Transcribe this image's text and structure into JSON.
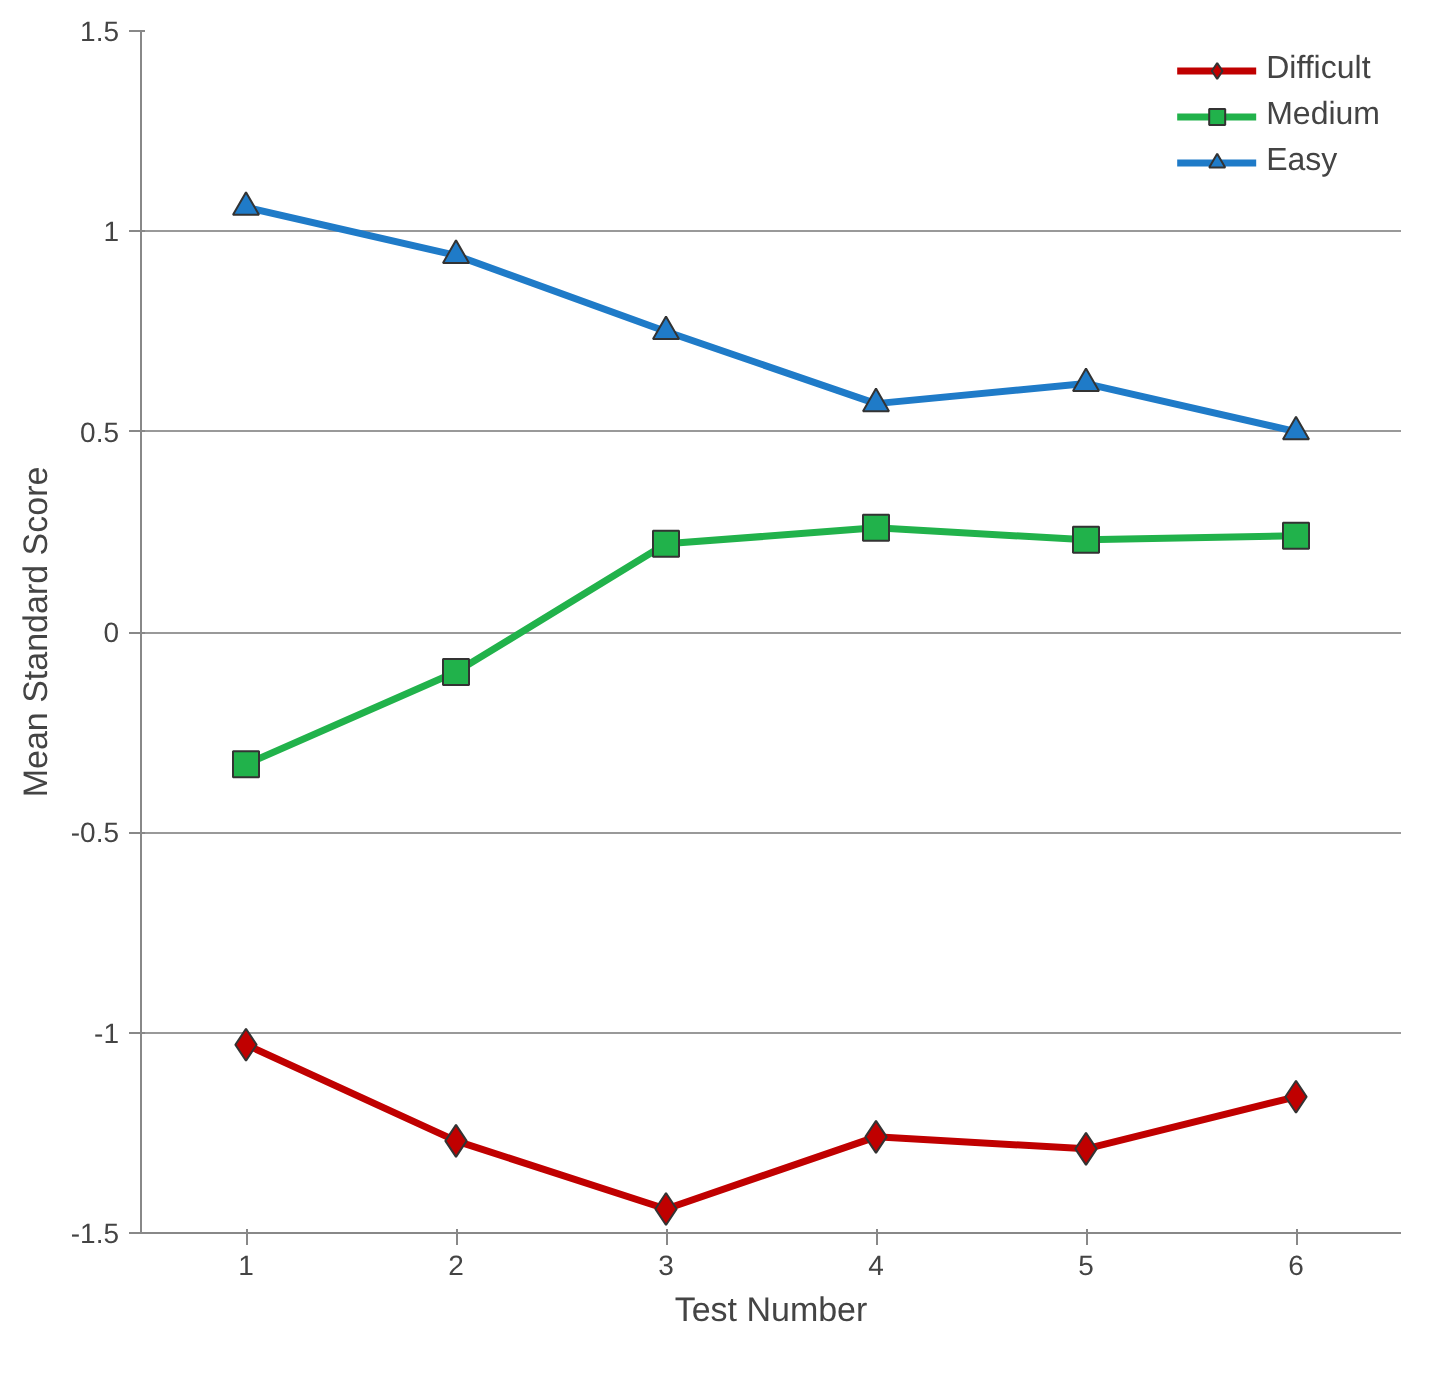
{
  "chart_data": {
    "type": "line",
    "xlabel": "Test Number",
    "ylabel": "Mean Standard Score",
    "categories": [
      "1",
      "2",
      "3",
      "4",
      "5",
      "6"
    ],
    "ylim": [
      -1.5,
      1.5
    ],
    "yticks": [
      {
        "value": -1.5,
        "label": "-1.5"
      },
      {
        "value": -1,
        "label": "-1"
      },
      {
        "value": -0.5,
        "label": "-0.5"
      },
      {
        "value": 0,
        "label": "0"
      },
      {
        "value": 0.5,
        "label": "0.5"
      },
      {
        "value": 1,
        "label": "1"
      },
      {
        "value": 1.5,
        "label": "1.5"
      }
    ],
    "grid": "y",
    "legend": "top right",
    "line_style": "solid",
    "series": [
      {
        "name": "Difficult",
        "color": "#c00000",
        "marker": "diamond",
        "values": [
          -1.03,
          -1.27,
          -1.44,
          -1.26,
          -1.29,
          -1.16
        ]
      },
      {
        "name": "Medium",
        "color": "#21b24b",
        "marker": "square",
        "values": [
          -0.33,
          -0.1,
          0.22,
          0.26,
          0.23,
          0.24
        ]
      },
      {
        "name": "Easy",
        "color": "#1f7bc8",
        "marker": "triangle",
        "values": [
          1.06,
          0.94,
          0.75,
          0.57,
          0.62,
          0.5
        ]
      }
    ]
  }
}
